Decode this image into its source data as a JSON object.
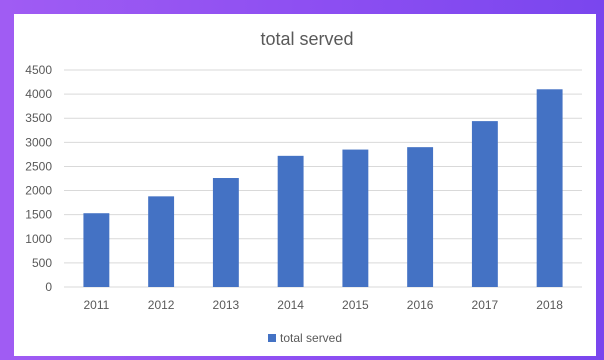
{
  "chart_data": {
    "type": "bar",
    "title": "total served",
    "categories": [
      "2011",
      "2012",
      "2013",
      "2014",
      "2015",
      "2016",
      "2017",
      "2018"
    ],
    "series": [
      {
        "name": "total served",
        "values": [
          1530,
          1880,
          2260,
          2720,
          2850,
          2900,
          3440,
          4100
        ],
        "color": "#4472c4"
      }
    ],
    "xlabel": "",
    "ylabel": "",
    "ylim": [
      0,
      4500
    ],
    "yticks": [
      "0",
      "500",
      "1000",
      "1500",
      "2000",
      "2500",
      "3000",
      "3500",
      "4000",
      "4500"
    ],
    "grid": true,
    "legend_position": "bottom"
  },
  "colors": {
    "gridline": "#d9d9d9",
    "text": "#595959",
    "background": "#ffffff"
  }
}
